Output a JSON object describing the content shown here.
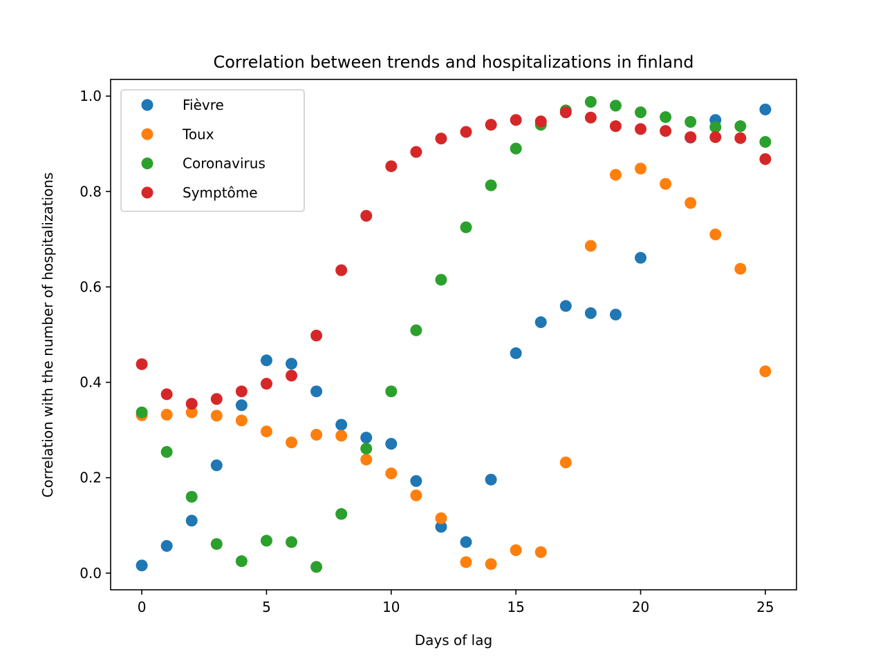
{
  "chart_data": {
    "type": "scatter",
    "title": "Correlation between trends and hospitalizations in finland",
    "xlabel": "Days of lag",
    "ylabel": "Correlation with the number of hospitalizations",
    "xlim": [
      -1.25,
      26.25
    ],
    "ylim": [
      -0.035,
      1.035
    ],
    "xticks": [
      0,
      5,
      10,
      15,
      20,
      25
    ],
    "yticks": [
      0.0,
      0.2,
      0.4,
      0.6,
      0.8,
      1.0
    ],
    "xtick_labels": [
      "0",
      "5",
      "10",
      "15",
      "20",
      "25"
    ],
    "ytick_labels": [
      "0.0",
      "0.2",
      "0.4",
      "0.6",
      "0.8",
      "1.0"
    ],
    "legend_position": "top-left",
    "grid": false,
    "x": [
      0,
      1,
      2,
      3,
      4,
      5,
      6,
      7,
      8,
      9,
      10,
      11,
      12,
      13,
      14,
      15,
      16,
      17,
      18,
      19,
      20,
      21,
      22,
      23,
      24,
      25
    ],
    "series": [
      {
        "name": "Fièvre",
        "color": "#1f77b4",
        "points": [
          [
            0,
            0.016
          ],
          [
            1,
            0.057
          ],
          [
            2,
            0.11
          ],
          [
            3,
            0.226
          ],
          [
            4,
            0.352
          ],
          [
            5,
            0.446
          ],
          [
            6,
            0.439
          ],
          [
            7,
            0.381
          ],
          [
            8,
            0.311
          ],
          [
            9,
            0.284
          ],
          [
            10,
            0.271
          ],
          [
            11,
            0.193
          ],
          [
            12,
            0.097
          ],
          [
            13,
            0.065
          ],
          [
            14,
            0.196
          ],
          [
            15,
            0.461
          ],
          [
            16,
            0.526
          ],
          [
            17,
            0.56
          ],
          [
            18,
            0.545
          ],
          [
            19,
            0.542
          ],
          [
            20,
            0.661
          ],
          [
            22,
            0.913
          ],
          [
            23,
            0.95
          ],
          [
            25,
            0.972
          ]
        ]
      },
      {
        "name": "Toux",
        "color": "#ff7f0e",
        "points": [
          [
            0,
            0.331
          ],
          [
            1,
            0.332
          ],
          [
            2,
            0.337
          ],
          [
            3,
            0.33
          ],
          [
            4,
            0.32
          ],
          [
            5,
            0.297
          ],
          [
            6,
            0.274
          ],
          [
            7,
            0.29
          ],
          [
            8,
            0.288
          ],
          [
            9,
            0.238
          ],
          [
            10,
            0.209
          ],
          [
            11,
            0.163
          ],
          [
            12,
            0.115
          ],
          [
            13,
            0.023
          ],
          [
            14,
            0.019
          ],
          [
            15,
            0.048
          ],
          [
            16,
            0.044
          ],
          [
            17,
            0.232
          ],
          [
            18,
            0.686
          ],
          [
            19,
            0.835
          ],
          [
            20,
            0.848
          ],
          [
            21,
            0.816
          ],
          [
            22,
            0.776
          ],
          [
            23,
            0.71
          ],
          [
            24,
            0.638
          ],
          [
            25,
            0.423
          ]
        ]
      },
      {
        "name": "Coronavirus",
        "color": "#2ca02c",
        "points": [
          [
            0,
            0.337
          ],
          [
            1,
            0.254
          ],
          [
            2,
            0.16
          ],
          [
            3,
            0.061
          ],
          [
            4,
            0.025
          ],
          [
            5,
            0.068
          ],
          [
            6,
            0.065
          ],
          [
            7,
            0.013
          ],
          [
            8,
            0.124
          ],
          [
            9,
            0.261
          ],
          [
            10,
            0.381
          ],
          [
            11,
            0.509
          ],
          [
            12,
            0.615
          ],
          [
            13,
            0.725
          ],
          [
            14,
            0.813
          ],
          [
            15,
            0.89
          ],
          [
            16,
            0.94
          ],
          [
            17,
            0.97
          ],
          [
            18,
            0.988
          ],
          [
            19,
            0.98
          ],
          [
            20,
            0.966
          ],
          [
            21,
            0.956
          ],
          [
            22,
            0.946
          ],
          [
            23,
            0.935
          ],
          [
            24,
            0.937
          ],
          [
            25,
            0.904
          ]
        ]
      },
      {
        "name": "Symptôme",
        "color": "#d62728",
        "points": [
          [
            0,
            0.438
          ],
          [
            1,
            0.375
          ],
          [
            2,
            0.355
          ],
          [
            3,
            0.365
          ],
          [
            4,
            0.381
          ],
          [
            5,
            0.397
          ],
          [
            6,
            0.414
          ],
          [
            7,
            0.498
          ],
          [
            8,
            0.635
          ],
          [
            9,
            0.749
          ],
          [
            10,
            0.853
          ],
          [
            11,
            0.883
          ],
          [
            12,
            0.911
          ],
          [
            13,
            0.925
          ],
          [
            14,
            0.94
          ],
          [
            15,
            0.95
          ],
          [
            16,
            0.947
          ],
          [
            17,
            0.966
          ],
          [
            18,
            0.955
          ],
          [
            19,
            0.937
          ],
          [
            20,
            0.931
          ],
          [
            21,
            0.927
          ],
          [
            22,
            0.914
          ],
          [
            23,
            0.914
          ],
          [
            24,
            0.912
          ],
          [
            25,
            0.868
          ]
        ]
      }
    ]
  }
}
